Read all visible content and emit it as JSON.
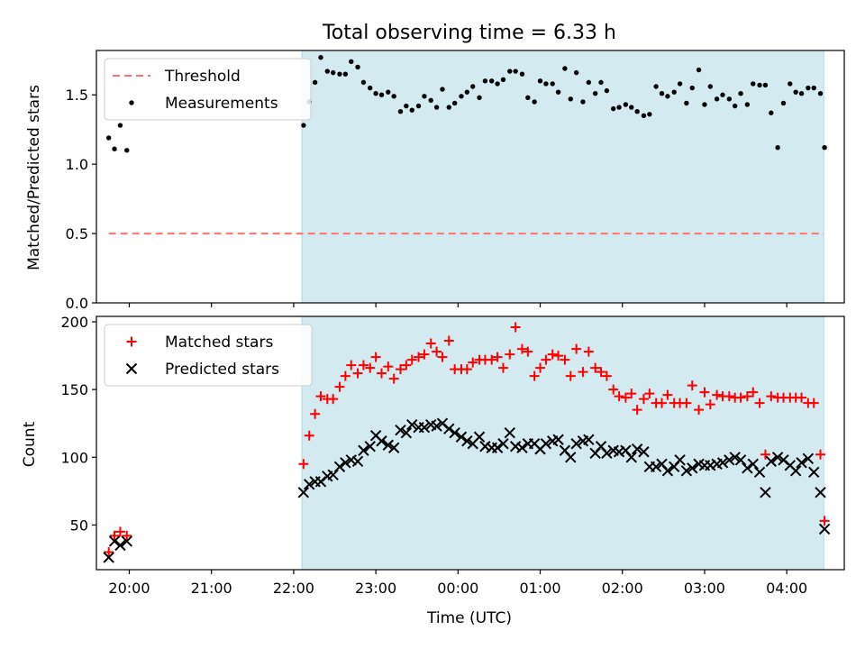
{
  "chart_data": [
    {
      "type": "scatter",
      "title": "Total observing time = 6.33 h",
      "ylabel": "Matched/Predicted stars",
      "xlim": [
        19.6,
        28.7
      ],
      "ylim": [
        0.0,
        1.82
      ],
      "yticks": [
        0.0,
        0.5,
        1.0,
        1.5
      ],
      "ytick_labels": [
        "0.0",
        "0.5",
        "1.0",
        "1.5"
      ],
      "xticks": [
        20,
        21,
        22,
        23,
        24,
        25,
        26,
        27,
        28
      ],
      "shaded_range": [
        22.1,
        28.45
      ],
      "shade_color": "#d4eaf1",
      "legend": "top-left",
      "series": [
        {
          "name": "Threshold",
          "style": "dashed-line",
          "color": "#ff7070",
          "x": [
            19.75,
            28.45
          ],
          "y": [
            0.5,
            0.5
          ]
        },
        {
          "name": "Measurements",
          "style": "dot",
          "color": "#000000",
          "x": [
            19.75,
            19.82,
            19.89,
            19.97,
            22.12,
            22.19,
            22.26,
            22.33,
            22.41,
            22.48,
            22.56,
            22.63,
            22.7,
            22.78,
            22.85,
            22.93,
            23.0,
            23.07,
            23.15,
            23.22,
            23.3,
            23.37,
            23.44,
            23.52,
            23.59,
            23.67,
            23.74,
            23.81,
            23.89,
            23.96,
            24.04,
            24.11,
            24.18,
            24.26,
            24.33,
            24.41,
            24.48,
            24.55,
            24.63,
            24.7,
            24.78,
            24.85,
            24.93,
            25.0,
            25.07,
            25.15,
            25.22,
            25.3,
            25.37,
            25.44,
            25.52,
            25.59,
            25.67,
            25.74,
            25.81,
            25.89,
            25.96,
            26.04,
            26.11,
            26.18,
            26.26,
            26.33,
            26.41,
            26.48,
            26.55,
            26.63,
            26.7,
            26.78,
            26.85,
            26.93,
            27.0,
            27.07,
            27.15,
            27.22,
            27.3,
            27.37,
            27.44,
            27.52,
            27.59,
            27.67,
            27.74,
            27.81,
            27.89,
            27.96,
            28.04,
            28.11,
            28.18,
            28.26,
            28.33,
            28.41,
            28.46
          ],
          "y": [
            1.19,
            1.11,
            1.28,
            1.1,
            1.28,
            1.45,
            1.59,
            1.77,
            1.67,
            1.66,
            1.65,
            1.65,
            1.74,
            1.7,
            1.59,
            1.55,
            1.51,
            1.5,
            1.52,
            1.49,
            1.38,
            1.42,
            1.39,
            1.42,
            1.49,
            1.46,
            1.41,
            1.54,
            1.41,
            1.44,
            1.49,
            1.52,
            1.56,
            1.48,
            1.6,
            1.6,
            1.58,
            1.61,
            1.67,
            1.67,
            1.65,
            1.48,
            1.45,
            1.6,
            1.58,
            1.58,
            1.52,
            1.69,
            1.47,
            1.66,
            1.45,
            1.59,
            1.51,
            1.59,
            1.53,
            1.4,
            1.41,
            1.43,
            1.41,
            1.38,
            1.35,
            1.36,
            1.56,
            1.51,
            1.49,
            1.52,
            1.58,
            1.44,
            1.55,
            1.68,
            1.43,
            1.56,
            1.47,
            1.5,
            1.47,
            1.42,
            1.51,
            1.43,
            1.58,
            1.57,
            1.57,
            1.37,
            1.12,
            1.44,
            1.58,
            1.52,
            1.51,
            1.55,
            1.55,
            1.51,
            1.12
          ]
        }
      ]
    },
    {
      "type": "scatter",
      "xlabel": "Time (UTC)",
      "ylabel": "Count",
      "xlim": [
        19.6,
        28.7
      ],
      "ylim": [
        17,
        204
      ],
      "yticks": [
        50,
        100,
        150,
        200
      ],
      "ytick_labels": [
        "50",
        "100",
        "150",
        "200"
      ],
      "xticks": [
        20,
        21,
        22,
        23,
        24,
        25,
        26,
        27,
        28
      ],
      "xtick_labels": [
        "20:00",
        "21:00",
        "22:00",
        "23:00",
        "00:00",
        "01:00",
        "02:00",
        "03:00",
        "04:00"
      ],
      "shaded_range": [
        22.1,
        28.45
      ],
      "shade_color": "#d4eaf1",
      "legend": "top-left",
      "series": [
        {
          "name": "Matched stars",
          "marker": "plus",
          "color": "#ff0000",
          "x": [
            19.75,
            19.82,
            19.89,
            19.97,
            22.12,
            22.19,
            22.26,
            22.33,
            22.41,
            22.48,
            22.56,
            22.63,
            22.7,
            22.78,
            22.85,
            22.93,
            23.0,
            23.07,
            23.15,
            23.22,
            23.3,
            23.37,
            23.44,
            23.52,
            23.59,
            23.67,
            23.74,
            23.81,
            23.89,
            23.96,
            24.04,
            24.11,
            24.18,
            24.26,
            24.33,
            24.41,
            24.48,
            24.55,
            24.63,
            24.7,
            24.78,
            24.85,
            24.93,
            25.0,
            25.07,
            25.15,
            25.22,
            25.3,
            25.37,
            25.44,
            25.52,
            25.59,
            25.67,
            25.74,
            25.81,
            25.89,
            25.96,
            26.04,
            26.11,
            26.18,
            26.26,
            26.33,
            26.41,
            26.48,
            26.55,
            26.63,
            26.7,
            26.78,
            26.85,
            26.93,
            27.0,
            27.07,
            27.15,
            27.22,
            27.3,
            27.37,
            27.44,
            27.52,
            27.59,
            27.67,
            27.74,
            27.81,
            27.89,
            27.96,
            28.04,
            28.11,
            28.18,
            28.26,
            28.33,
            28.41,
            28.46
          ],
          "y": [
            30,
            42,
            45,
            42,
            95,
            116,
            132,
            145,
            143,
            143,
            152,
            160,
            168,
            162,
            168,
            166,
            174,
            162,
            167,
            158,
            165,
            168,
            172,
            174,
            176,
            184,
            178,
            174,
            186,
            165,
            165,
            165,
            170,
            172,
            172,
            172,
            174,
            166,
            176,
            196,
            180,
            178,
            160,
            166,
            172,
            176,
            175,
            172,
            160,
            180,
            163,
            178,
            166,
            163,
            160,
            150,
            145,
            144,
            147,
            135,
            143,
            147,
            140,
            140,
            146,
            140,
            140,
            140,
            153,
            135,
            148,
            139,
            146,
            145,
            145,
            144,
            144,
            145,
            148,
            140,
            102,
            145,
            144,
            144,
            144,
            144,
            144,
            140,
            140,
            102,
            53
          ],
          "note": ""
        },
        {
          "name": "Predicted stars",
          "marker": "x",
          "color": "#000000",
          "x": [
            19.75,
            19.82,
            19.89,
            19.97,
            22.12,
            22.19,
            22.26,
            22.33,
            22.41,
            22.48,
            22.56,
            22.63,
            22.7,
            22.78,
            22.85,
            22.93,
            23.0,
            23.07,
            23.15,
            23.22,
            23.3,
            23.37,
            23.44,
            23.52,
            23.59,
            23.67,
            23.74,
            23.81,
            23.89,
            23.96,
            24.04,
            24.11,
            24.18,
            24.26,
            24.33,
            24.41,
            24.48,
            24.55,
            24.63,
            24.7,
            24.78,
            24.85,
            24.93,
            25.0,
            25.07,
            25.15,
            25.22,
            25.3,
            25.37,
            25.44,
            25.52,
            25.59,
            25.67,
            25.74,
            25.81,
            25.89,
            25.96,
            26.04,
            26.11,
            26.18,
            26.26,
            26.33,
            26.41,
            26.48,
            26.55,
            26.63,
            26.7,
            26.78,
            26.85,
            26.93,
            27.0,
            27.07,
            27.15,
            27.22,
            27.3,
            27.37,
            27.44,
            27.52,
            27.59,
            27.67,
            27.74,
            27.81,
            27.89,
            27.96,
            28.04,
            28.11,
            28.18,
            28.26,
            28.33,
            28.41,
            28.46
          ],
          "y": [
            26,
            38,
            35,
            38,
            74,
            80,
            82,
            82,
            86,
            87,
            93,
            96,
            98,
            97,
            105,
            108,
            116,
            112,
            109,
            107,
            120,
            118,
            124,
            122,
            122,
            124,
            123,
            125,
            121,
            118,
            115,
            112,
            110,
            115,
            108,
            107,
            107,
            110,
            118,
            108,
            107,
            110,
            110,
            106,
            110,
            112,
            113,
            105,
            100,
            110,
            112,
            113,
            103,
            108,
            103,
            105,
            104,
            105,
            100,
            106,
            104,
            93,
            93,
            95,
            90,
            93,
            98,
            90,
            92,
            95,
            94,
            94,
            95,
            96,
            98,
            100,
            98,
            92,
            95,
            89,
            74,
            97,
            100,
            98,
            94,
            90,
            96,
            99,
            89,
            74,
            47
          ]
        }
      ]
    }
  ]
}
